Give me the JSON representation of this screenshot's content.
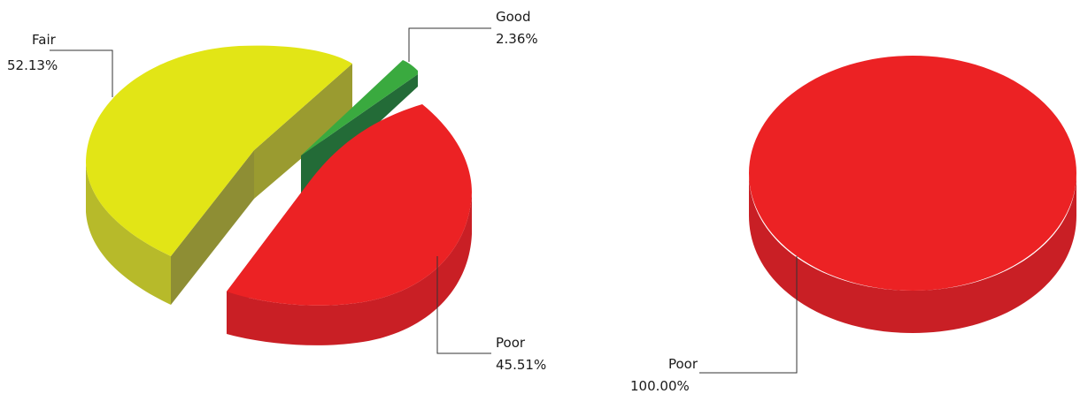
{
  "chart_data": [
    {
      "type": "pie",
      "style": "3d-exploded",
      "slices": [
        {
          "label": "Fair",
          "value": 52.13,
          "percent_text": "52.13%",
          "color": "#e2e516"
        },
        {
          "label": "Good",
          "value": 2.36,
          "percent_text": "2.36%",
          "color": "#3aaa3f"
        },
        {
          "label": "Poor",
          "value": 45.51,
          "percent_text": "45.51%",
          "color": "#ec2224"
        }
      ]
    },
    {
      "type": "pie",
      "style": "3d",
      "slices": [
        {
          "label": "Poor",
          "value": 100.0,
          "percent_text": "100.00%",
          "color": "#ec2224"
        }
      ]
    }
  ]
}
